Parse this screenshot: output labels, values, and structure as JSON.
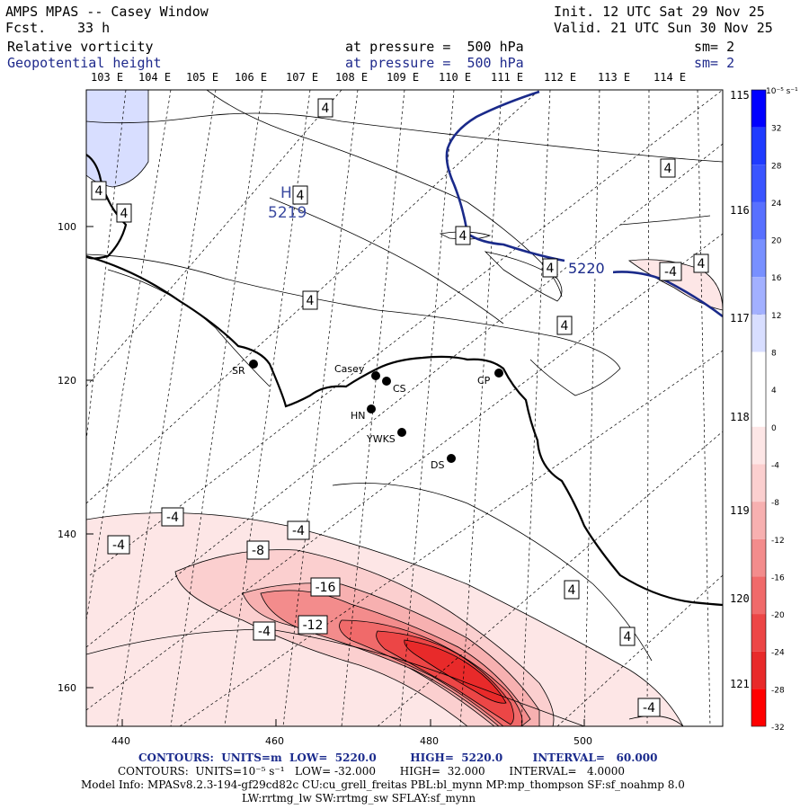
{
  "header": {
    "model": "AMPS MPAS -- Casey Window",
    "forecast_label": "Fcst.",
    "forecast_hours": "33 h",
    "init": "Init. 12 UTC Sat 29 Nov 25",
    "valid": "Valid. 21 UTC Sun 30 Nov 25",
    "field1_name": "Relative vorticity",
    "field1_level": "at pressure =  500 hPa",
    "field1_smooth": "sm= 2",
    "field2_name": "Geopotential height",
    "field2_level": "at pressure =  500 hPa",
    "field2_smooth": "sm= 2"
  },
  "axes": {
    "top_lon_labels": [
      "103 E",
      "104 E",
      "105 E",
      "106 E",
      "107 E",
      "108 E",
      "109 E",
      "110 E",
      "111 E",
      "112 E",
      "113 E",
      "114 E"
    ],
    "right_lon_labels": [
      "115 E",
      "116 E",
      "117 E",
      "118 E",
      "119 E",
      "120 E",
      "121 E"
    ],
    "x_ticks": [
      "440",
      "460",
      "480",
      "500"
    ],
    "y_ticks": [
      "100",
      "120",
      "140",
      "160"
    ]
  },
  "colorbar": {
    "unit_label": "10⁻⁵ s⁻¹",
    "levels": [
      "32",
      "28",
      "24",
      "20",
      "16",
      "12",
      "8",
      "4",
      "0",
      "-4",
      "-8",
      "-12",
      "-16",
      "-20",
      "-24",
      "-28",
      "-32"
    ],
    "colors": {
      "32": "#0000ff",
      "28": "#1f3bff",
      "24": "#3a55ff",
      "20": "#5870ff",
      "16": "#7890ff",
      "12": "#a2b0ff",
      "8": "#d8deff",
      "4": "#ffffff",
      "0": "#ffffff",
      "-4": "#fde6e6",
      "-8": "#fbcfcf",
      "-12": "#f7b0b0",
      "-16": "#f38c8c",
      "-20": "#f06a6a",
      "-24": "#ec4646",
      "-28": "#e82a2a",
      "-32": "#ff0000"
    }
  },
  "stations": [
    {
      "id": "SR",
      "label": "SR"
    },
    {
      "id": "Casey",
      "label": "Casey"
    },
    {
      "id": "CS",
      "label": "CS"
    },
    {
      "id": "HN",
      "label": "HN"
    },
    {
      "id": "YWKS",
      "label": "YWKS"
    },
    {
      "id": "CP",
      "label": "CP"
    },
    {
      "id": "DS",
      "label": "DS"
    }
  ],
  "contour_labels": {
    "vorticity": [
      "4",
      "4",
      "4",
      "4",
      "4",
      "4",
      "4",
      "4",
      "4",
      "4",
      "4",
      "-4",
      "4",
      "-4",
      "-4",
      "-4",
      "-8",
      "-16",
      "-12",
      "-4",
      "-4"
    ],
    "high_marker": "H",
    "high_value": "5219",
    "height_value": "5220"
  },
  "footer": {
    "line1": "CONTOURS:  UNITS=m  LOW=  5220.0         HIGH=  5220.0        INTERVAL=   60.000",
    "line2": "CONTOURS:  UNITS=10⁻⁵ s⁻¹   LOW= -32.000       HIGH=  32.000       INTERVAL=   4.0000",
    "line3": "Model Info: MPASv8.2.3-194-gf29cd82c CU:cu_grell_freitas PBL:bl_mynn MP:mp_thompson SF:sf_noahmp 8.0",
    "line4": "LW:rrtmg_lw SW:rrtmg_sw SFLAY:sf_mynn"
  }
}
